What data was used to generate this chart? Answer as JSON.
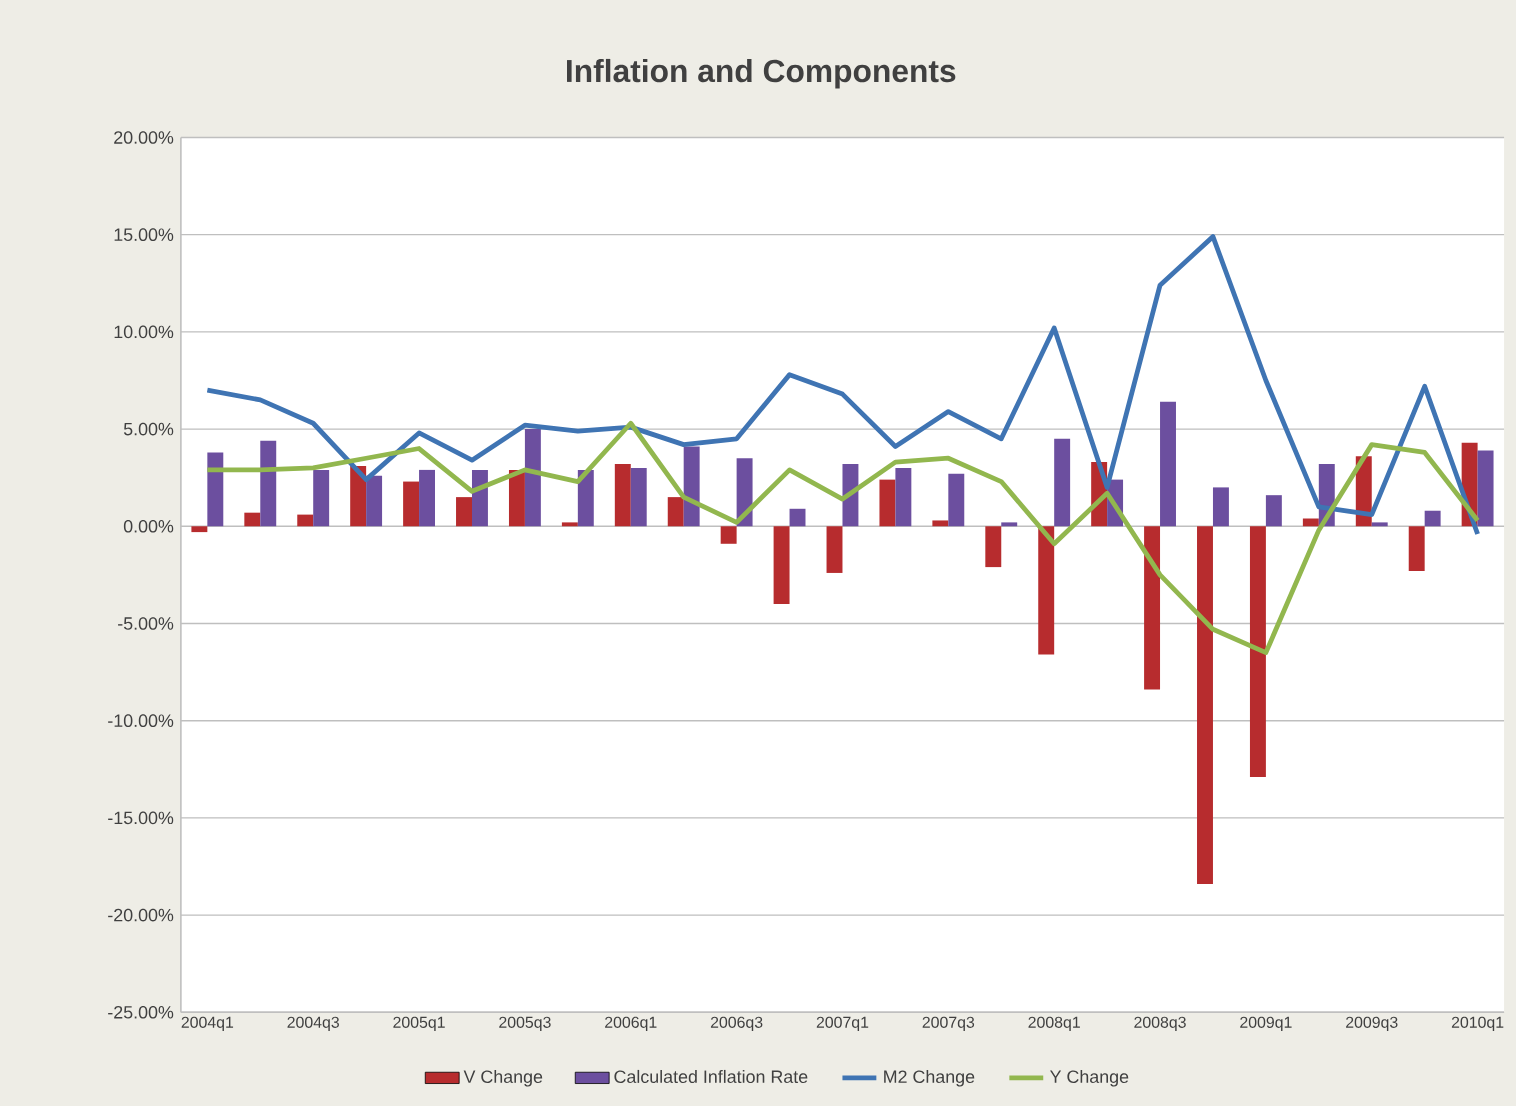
{
  "chart_data": {
    "type": "bar",
    "title": "Inflation and Components",
    "categories": [
      "2004q1",
      null,
      "2004q3",
      null,
      "2005q1",
      null,
      "2005q3",
      null,
      "2006q1",
      null,
      "2006q3",
      null,
      "2007q1",
      null,
      "2007q3",
      null,
      "2008q1",
      null,
      "2008q3",
      null,
      "2009q1",
      null,
      "2009q3",
      null,
      "2010q1"
    ],
    "series": [
      {
        "name": "V Change",
        "color": "#b72c2e",
        "values": [
          -0.3,
          0.7,
          0.6,
          3.1,
          2.3,
          1.5,
          2.9,
          0.2,
          3.2,
          1.5,
          -0.9,
          -4.0,
          -2.4,
          2.4,
          0.3,
          -2.1,
          -6.6,
          3.3,
          -8.4,
          -18.4,
          -12.9,
          0.4,
          3.6,
          -2.3,
          4.3
        ]
      },
      {
        "name": "Calculated Inflation Rate",
        "color": "#6c4f9f",
        "values": [
          3.8,
          4.4,
          2.9,
          2.6,
          2.9,
          2.9,
          5.0,
          2.9,
          3.0,
          4.1,
          3.5,
          0.9,
          3.2,
          3.0,
          2.7,
          0.2,
          4.5,
          2.4,
          6.4,
          2.0,
          1.6,
          3.2,
          0.2,
          0.8,
          3.9
        ]
      },
      {
        "name": "M2 Change",
        "type": "line",
        "color": "#3f74b3",
        "values": [
          7.0,
          6.5,
          5.3,
          2.4,
          4.8,
          3.4,
          5.2,
          4.9,
          5.1,
          4.2,
          4.5,
          7.8,
          6.8,
          4.1,
          5.9,
          4.5,
          10.2,
          2.0,
          12.4,
          14.9,
          7.5,
          1.0,
          0.6,
          7.2,
          -0.4
        ]
      },
      {
        "name": "Y Change",
        "type": "line",
        "color": "#92b74e",
        "values": [
          2.9,
          2.9,
          3.0,
          3.5,
          4.0,
          1.8,
          2.9,
          2.3,
          5.3,
          1.5,
          0.2,
          2.9,
          1.4,
          3.3,
          3.5,
          2.3,
          -0.9,
          1.7,
          -2.5,
          -5.3,
          -6.5,
          -0.2,
          4.2,
          3.8,
          0.3
        ]
      }
    ],
    "ylim": [
      -25,
      20
    ],
    "yticks": [
      {
        "value": 20,
        "label": "20.00%"
      },
      {
        "value": 15,
        "label": "15.00%"
      },
      {
        "value": 10,
        "label": "10.00%"
      },
      {
        "value": 5,
        "label": "5.00%"
      },
      {
        "value": 0,
        "label": "0.00%"
      },
      {
        "value": -5,
        "label": "-5.00%"
      },
      {
        "value": -10,
        "label": "-10.00%"
      },
      {
        "value": -15,
        "label": "-15.00%"
      },
      {
        "value": -20,
        "label": "-20.00%"
      },
      {
        "value": -25,
        "label": "-25.00%"
      }
    ],
    "grid": "y",
    "legend": "bottom"
  }
}
